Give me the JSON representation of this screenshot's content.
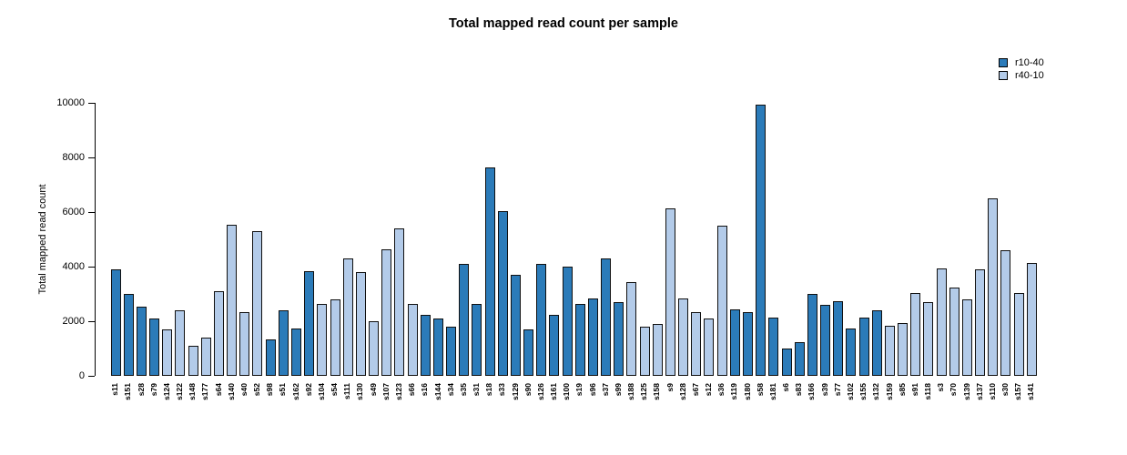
{
  "title": "Total mapped read count per sample",
  "legend": {
    "items": [
      {
        "label": "r10-40",
        "color": "#2b7bb9"
      },
      {
        "label": "r40-10",
        "color": "#b3cbe9"
      }
    ]
  },
  "y_axis": {
    "label": "Total mapped read count",
    "ticks": [
      "0",
      "2000",
      "4000",
      "6000",
      "8000",
      "10000"
    ]
  },
  "chart_data": {
    "type": "bar",
    "title": "Total mapped read count per sample",
    "xlabel": "",
    "ylabel": "Total mapped read count",
    "ylim": [
      0,
      10000
    ],
    "grid": false,
    "legend_position": "top-right",
    "series_colors": {
      "r10-40": "#2b7bb9",
      "r40-10": "#b3cbe9"
    },
    "samples": [
      {
        "name": "s11",
        "value": 3900,
        "series": "r10-40"
      },
      {
        "name": "s151",
        "value": 3000,
        "series": "r10-40"
      },
      {
        "name": "s28",
        "value": 2550,
        "series": "r10-40"
      },
      {
        "name": "s79",
        "value": 2100,
        "series": "r10-40"
      },
      {
        "name": "s124",
        "value": 1700,
        "series": "r40-10"
      },
      {
        "name": "s122",
        "value": 2400,
        "series": "r40-10"
      },
      {
        "name": "s148",
        "value": 1100,
        "series": "r40-10"
      },
      {
        "name": "s177",
        "value": 1400,
        "series": "r40-10"
      },
      {
        "name": "s64",
        "value": 3100,
        "series": "r40-10"
      },
      {
        "name": "s140",
        "value": 5550,
        "series": "r40-10"
      },
      {
        "name": "s40",
        "value": 2350,
        "series": "r40-10"
      },
      {
        "name": "s52",
        "value": 5300,
        "series": "r40-10"
      },
      {
        "name": "s98",
        "value": 1350,
        "series": "r10-40"
      },
      {
        "name": "s51",
        "value": 2400,
        "series": "r10-40"
      },
      {
        "name": "s162",
        "value": 1750,
        "series": "r10-40"
      },
      {
        "name": "s92",
        "value": 3850,
        "series": "r10-40"
      },
      {
        "name": "s104",
        "value": 2650,
        "series": "r40-10"
      },
      {
        "name": "s54",
        "value": 2800,
        "series": "r40-10"
      },
      {
        "name": "s111",
        "value": 4300,
        "series": "r40-10"
      },
      {
        "name": "s130",
        "value": 3800,
        "series": "r40-10"
      },
      {
        "name": "s49",
        "value": 2000,
        "series": "r40-10"
      },
      {
        "name": "s107",
        "value": 4650,
        "series": "r40-10"
      },
      {
        "name": "s123",
        "value": 5400,
        "series": "r40-10"
      },
      {
        "name": "s66",
        "value": 2650,
        "series": "r40-10"
      },
      {
        "name": "s16",
        "value": 2250,
        "series": "r10-40"
      },
      {
        "name": "s144",
        "value": 2100,
        "series": "r10-40"
      },
      {
        "name": "s34",
        "value": 1800,
        "series": "r10-40"
      },
      {
        "name": "s35",
        "value": 4100,
        "series": "r10-40"
      },
      {
        "name": "s31",
        "value": 2650,
        "series": "r10-40"
      },
      {
        "name": "s18",
        "value": 7650,
        "series": "r10-40"
      },
      {
        "name": "s33",
        "value": 6050,
        "series": "r10-40"
      },
      {
        "name": "s129",
        "value": 3700,
        "series": "r10-40"
      },
      {
        "name": "s90",
        "value": 1700,
        "series": "r10-40"
      },
      {
        "name": "s126",
        "value": 4100,
        "series": "r10-40"
      },
      {
        "name": "s161",
        "value": 2250,
        "series": "r10-40"
      },
      {
        "name": "s100",
        "value": 4000,
        "series": "r10-40"
      },
      {
        "name": "s19",
        "value": 2650,
        "series": "r10-40"
      },
      {
        "name": "s96",
        "value": 2850,
        "series": "r10-40"
      },
      {
        "name": "s37",
        "value": 4300,
        "series": "r10-40"
      },
      {
        "name": "s99",
        "value": 2700,
        "series": "r10-40"
      },
      {
        "name": "s188",
        "value": 3450,
        "series": "r40-10"
      },
      {
        "name": "s125",
        "value": 1800,
        "series": "r40-10"
      },
      {
        "name": "s158",
        "value": 1900,
        "series": "r40-10"
      },
      {
        "name": "s9",
        "value": 6150,
        "series": "r40-10"
      },
      {
        "name": "s128",
        "value": 2850,
        "series": "r40-10"
      },
      {
        "name": "s67",
        "value": 2350,
        "series": "r40-10"
      },
      {
        "name": "s12",
        "value": 2100,
        "series": "r40-10"
      },
      {
        "name": "s36",
        "value": 5500,
        "series": "r40-10"
      },
      {
        "name": "s119",
        "value": 2450,
        "series": "r10-40"
      },
      {
        "name": "s180",
        "value": 2350,
        "series": "r10-40"
      },
      {
        "name": "s58",
        "value": 9950,
        "series": "r10-40"
      },
      {
        "name": "s181",
        "value": 2150,
        "series": "r10-40"
      },
      {
        "name": "s6",
        "value": 1000,
        "series": "r10-40"
      },
      {
        "name": "s83",
        "value": 1250,
        "series": "r10-40"
      },
      {
        "name": "s166",
        "value": 3000,
        "series": "r10-40"
      },
      {
        "name": "s39",
        "value": 2600,
        "series": "r10-40"
      },
      {
        "name": "s77",
        "value": 2750,
        "series": "r10-40"
      },
      {
        "name": "s102",
        "value": 1750,
        "series": "r10-40"
      },
      {
        "name": "s155",
        "value": 2150,
        "series": "r10-40"
      },
      {
        "name": "s132",
        "value": 2400,
        "series": "r10-40"
      },
      {
        "name": "s159",
        "value": 1850,
        "series": "r40-10"
      },
      {
        "name": "s85",
        "value": 1950,
        "series": "r40-10"
      },
      {
        "name": "s91",
        "value": 3050,
        "series": "r40-10"
      },
      {
        "name": "s118",
        "value": 2700,
        "series": "r40-10"
      },
      {
        "name": "s3",
        "value": 3950,
        "series": "r40-10"
      },
      {
        "name": "s70",
        "value": 3250,
        "series": "r40-10"
      },
      {
        "name": "s139",
        "value": 2800,
        "series": "r40-10"
      },
      {
        "name": "s137",
        "value": 3900,
        "series": "r40-10"
      },
      {
        "name": "s110",
        "value": 6500,
        "series": "r40-10"
      },
      {
        "name": "s30",
        "value": 4600,
        "series": "r40-10"
      },
      {
        "name": "s157",
        "value": 3050,
        "series": "r40-10"
      },
      {
        "name": "s141",
        "value": 4150,
        "series": "r40-10"
      }
    ]
  }
}
